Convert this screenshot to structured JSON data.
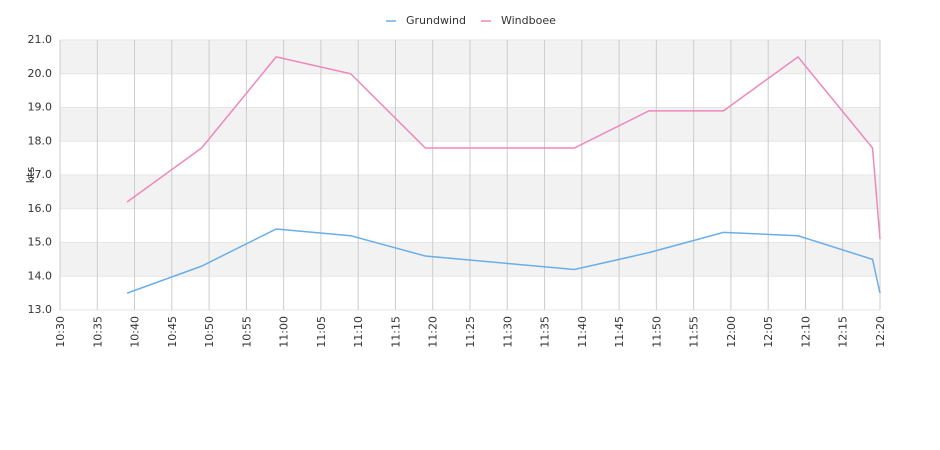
{
  "chart_data": {
    "type": "line",
    "y_label": "kts",
    "x": [
      "10:39",
      "10:49",
      "10:59",
      "11:09",
      "11:19",
      "11:29",
      "11:39",
      "11:49",
      "11:59",
      "12:09",
      "12:19",
      "12:20"
    ],
    "series": [
      {
        "name": "Grundwind",
        "color": "#6aaee8",
        "values": [
          13.5,
          14.3,
          15.4,
          15.2,
          14.6,
          14.4,
          14.2,
          14.7,
          15.3,
          15.2,
          14.5,
          13.5
        ]
      },
      {
        "name": "Windboee",
        "color": "#ee88bb",
        "values": [
          16.2,
          17.8,
          20.5,
          20.0,
          17.8,
          17.8,
          17.8,
          18.9,
          18.9,
          20.5,
          17.8,
          15.1
        ]
      }
    ],
    "xlim": [
      "10:30",
      "12:20"
    ],
    "xticks": [
      "10:30",
      "10:35",
      "10:40",
      "10:45",
      "10:50",
      "10:55",
      "11:00",
      "11:05",
      "11:10",
      "11:15",
      "11:20",
      "11:25",
      "11:30",
      "11:35",
      "11:40",
      "11:45",
      "11:50",
      "11:55",
      "12:00",
      "12:05",
      "12:10",
      "12:15",
      "12:20"
    ],
    "ylim": [
      13,
      21
    ],
    "yticks": [
      {
        "value": 13,
        "label": "13.0"
      },
      {
        "value": 14,
        "label": "14.0"
      },
      {
        "value": 15,
        "label": "15.0"
      },
      {
        "value": 16,
        "label": "16.0"
      },
      {
        "value": 17,
        "label": "17.0"
      },
      {
        "value": 18,
        "label": "18.0"
      },
      {
        "value": 19,
        "label": "19.0"
      },
      {
        "value": 20,
        "label": "20.0"
      },
      {
        "value": 21,
        "label": "21.0"
      }
    ],
    "grid": true,
    "legend": "top"
  }
}
